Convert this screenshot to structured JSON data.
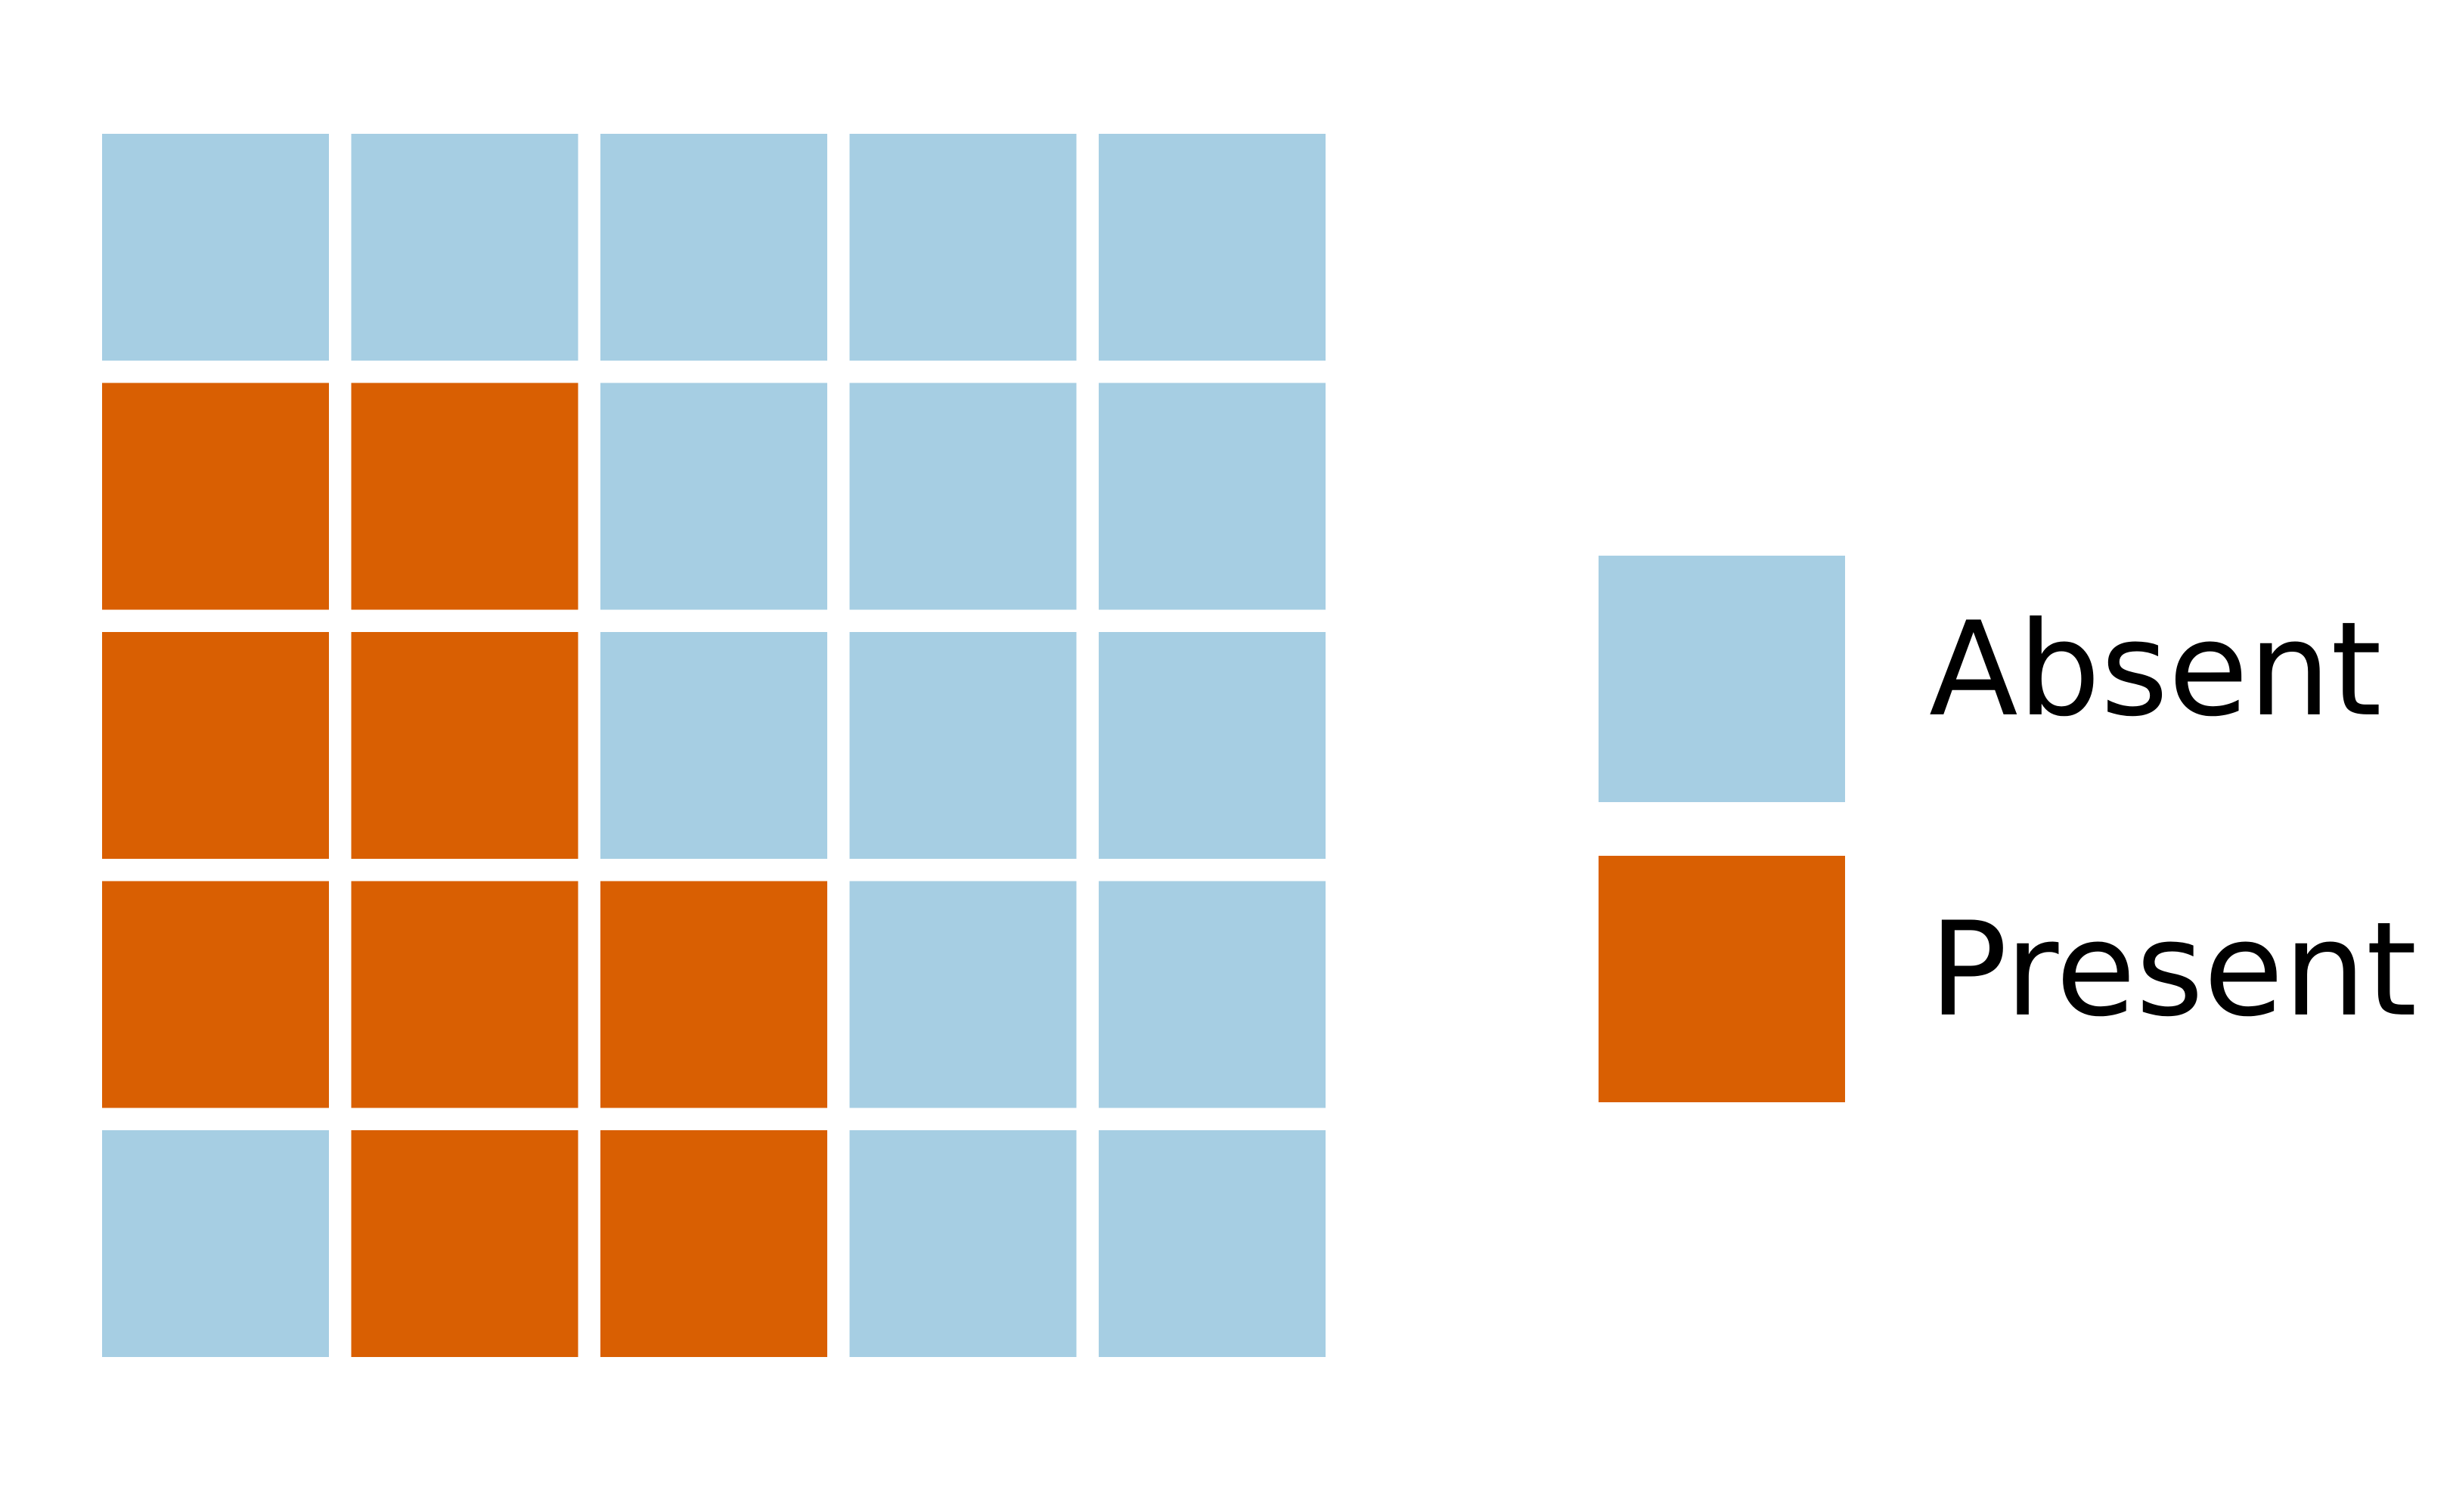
{
  "chart_data": {
    "type": "heatmap",
    "values": [
      [
        0,
        0,
        0,
        0,
        0
      ],
      [
        1,
        1,
        0,
        0,
        0
      ],
      [
        1,
        1,
        0,
        0,
        0
      ],
      [
        1,
        1,
        1,
        0,
        0
      ],
      [
        0,
        1,
        1,
        0,
        0
      ]
    ],
    "series": [
      {
        "name": "Absent",
        "color": "#a6cee3"
      },
      {
        "name": "Present",
        "color": "#d95f02"
      }
    ]
  }
}
